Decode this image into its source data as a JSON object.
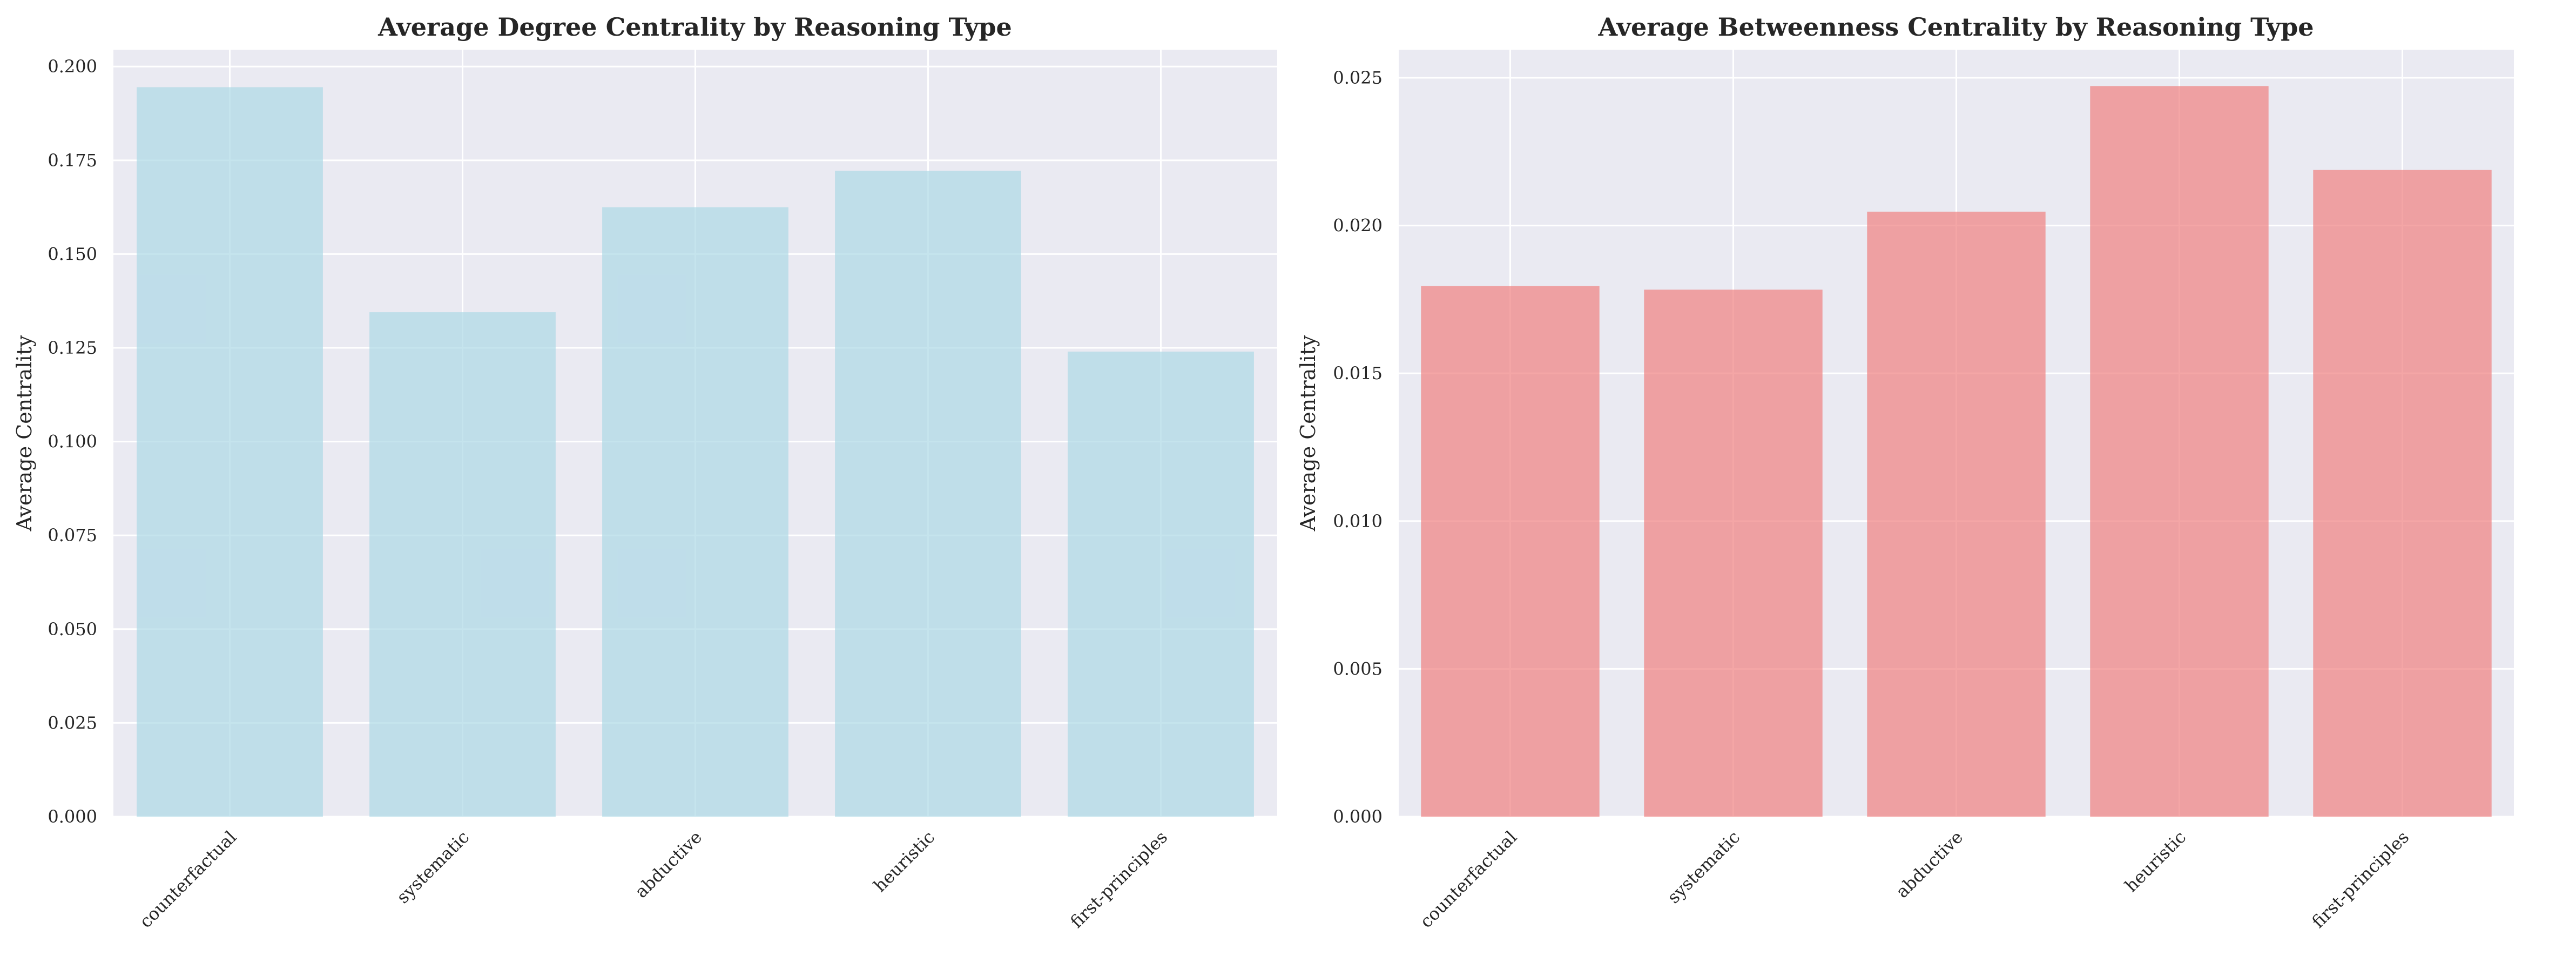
{
  "chart_data": [
    {
      "type": "bar",
      "title": "Average Degree Centrality by Reasoning Type",
      "xlabel": "",
      "ylabel": "Average Centrality",
      "categories": [
        "counterfactual",
        "systematic",
        "abductive",
        "heuristic",
        "first-principles"
      ],
      "values": [
        0.1945,
        0.1345,
        0.1625,
        0.1722,
        0.124
      ],
      "ylim": [
        0,
        0.2045
      ],
      "yticks": [
        "0.000",
        "0.025",
        "0.050",
        "0.075",
        "0.100",
        "0.125",
        "0.150",
        "0.175",
        "0.200"
      ],
      "ytick_values": [
        0,
        0.025,
        0.05,
        0.075,
        0.1,
        0.125,
        0.15,
        0.175,
        0.2
      ],
      "color": "#add8e6",
      "grid": true
    },
    {
      "type": "bar",
      "title": "Average Betweenness Centrality by Reasoning Type",
      "xlabel": "",
      "ylabel": "Average Centrality",
      "categories": [
        "counterfactual",
        "systematic",
        "abductive",
        "heuristic",
        "first-principles"
      ],
      "values": [
        0.01795,
        0.01783,
        0.02047,
        0.02472,
        0.02188
      ],
      "ylim": [
        0,
        0.02595
      ],
      "yticks": [
        "0.000",
        "0.005",
        "0.010",
        "0.015",
        "0.020",
        "0.025"
      ],
      "ytick_values": [
        0,
        0.005,
        0.01,
        0.015,
        0.02,
        0.025
      ],
      "color": "#f08080",
      "grid": true
    }
  ]
}
